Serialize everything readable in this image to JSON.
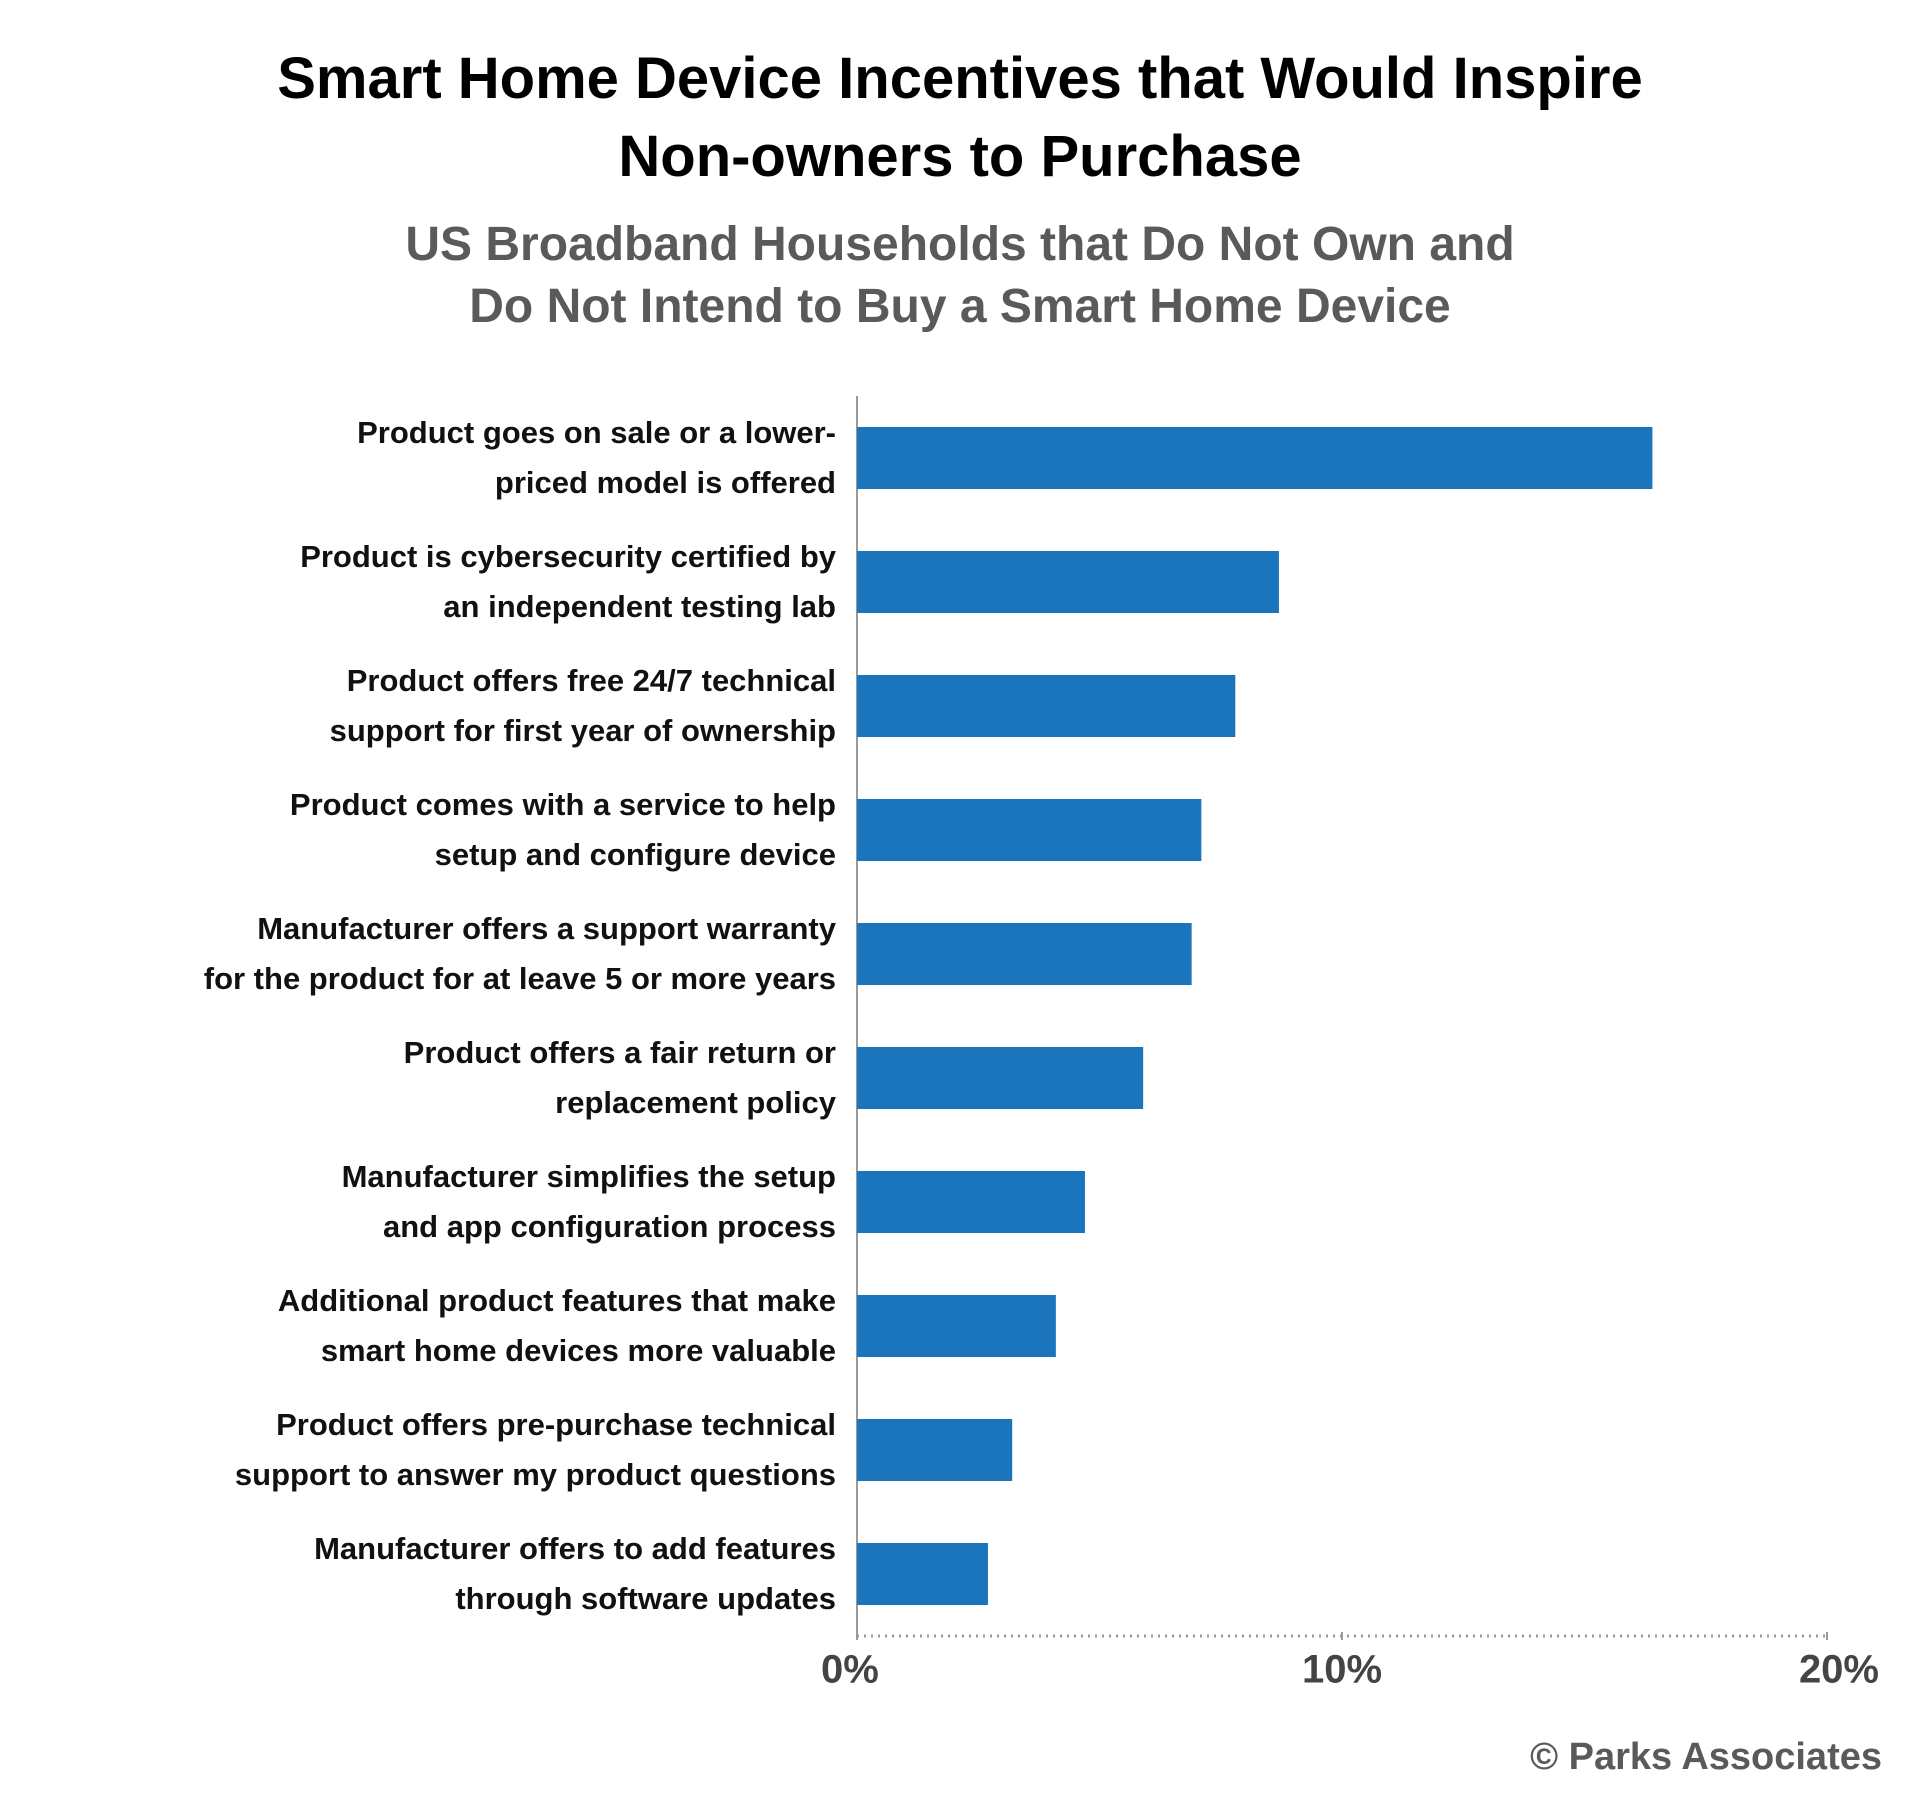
{
  "chart_data": {
    "type": "bar",
    "orientation": "horizontal",
    "title": "Smart Home Device Incentives that Would Inspire\nNon-owners to Purchase",
    "subtitle": "US Broadband Households that Do Not Own and\nDo Not Intend to Buy a Smart Home Device",
    "categories": [
      "Product goes on sale or a lower-\npriced model is offered",
      "Product is cybersecurity certified by\nan independent testing lab",
      "Product offers free 24/7 technical\nsupport for first year of ownership",
      "Product comes with a service to help\nsetup and configure device",
      "Manufacturer offers a support warranty\nfor the product for at leave 5 or more years",
      "Product offers a fair return or\nreplacement policy",
      "Manufacturer simplifies the setup\nand app configuration process",
      "Additional product features that make\nsmart home devices more valuable",
      "Product offers pre-purchase technical\nsupport to answer my product questions",
      "Manufacturer offers to add features\nthrough software updates"
    ],
    "values": [
      16.4,
      8.7,
      7.8,
      7.1,
      6.9,
      5.9,
      4.7,
      4.1,
      3.2,
      2.7
    ],
    "color": "#1a75bc",
    "xlim": [
      0,
      20
    ],
    "xticks": [
      {
        "value": 0,
        "label": "0%"
      },
      {
        "value": 10,
        "label": "10%"
      },
      {
        "value": 20,
        "label": "20%"
      }
    ],
    "source": "© Parks Associates"
  }
}
